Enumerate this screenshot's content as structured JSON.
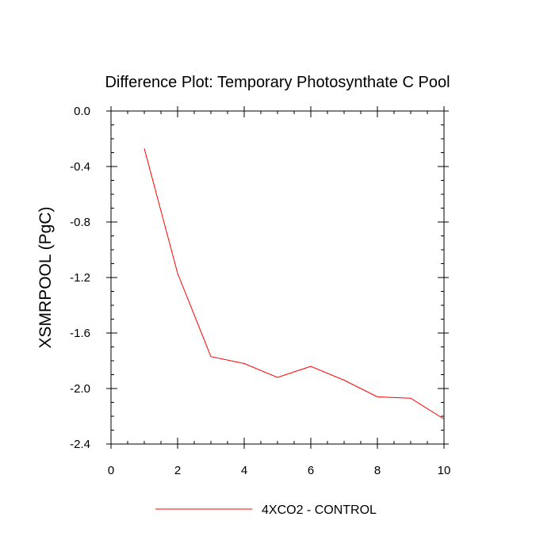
{
  "chart_data": {
    "type": "line",
    "title": "Difference Plot: Temporary Photosynthate C Pool",
    "xlabel": "",
    "ylabel": "XSMRPOOL  (PgC)",
    "xlim": [
      0,
      10
    ],
    "ylim": [
      -2.4,
      0.0
    ],
    "x_ticks": [
      "0",
      "2",
      "4",
      "6",
      "8",
      "10"
    ],
    "y_ticks": [
      "0.0",
      "-0.4",
      "-0.8",
      "-1.2",
      "-1.6",
      "-2.0",
      "-2.4"
    ],
    "grid": false,
    "legend_position": "bottom-center",
    "series": [
      {
        "name": "4XCO2 - CONTROL",
        "color": "#ff0000",
        "x": [
          1,
          2,
          3,
          4,
          5,
          6,
          7,
          8,
          9,
          10
        ],
        "y": [
          -0.27,
          -1.17,
          -1.77,
          -1.82,
          -1.92,
          -1.84,
          -1.94,
          -2.06,
          -2.07,
          -2.22
        ]
      }
    ]
  }
}
